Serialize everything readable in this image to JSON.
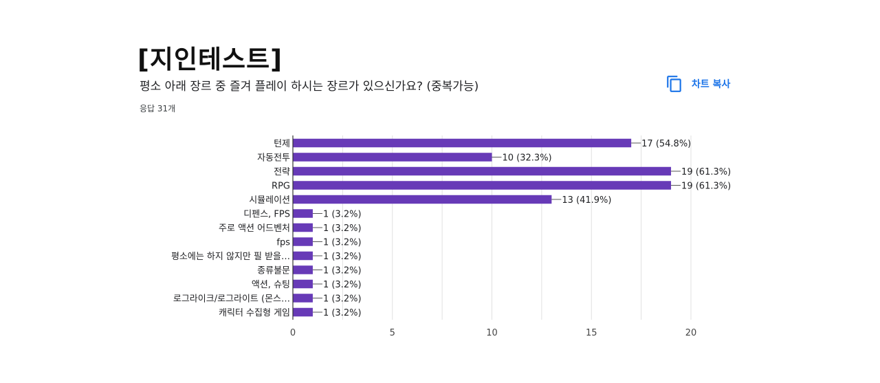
{
  "header": {
    "title": "[지인테스트]",
    "question": "평소 아래 장르 중 즐겨 플레이 하시는 장르가 있으신가요? (중복가능)",
    "response_count": "응답 31개",
    "copy_chart_label": "차트 복사",
    "copy_icon": "copy-icon"
  },
  "colors": {
    "bar": "#673ab7",
    "accent": "#1a73e8",
    "grid": "#e0e0e0",
    "axis": "#333333",
    "text": "#202124"
  },
  "chart_data": {
    "type": "bar",
    "orientation": "horizontal",
    "title": "평소 아래 장르 중 즐겨 플레이 하시는 장르가 있으신가요? (중복가능)",
    "xlabel": "",
    "ylabel": "",
    "xlim": [
      0,
      20
    ],
    "xticks": [
      0,
      5,
      10,
      15,
      20
    ],
    "grid": true,
    "legend": "none",
    "categories": [
      "턴제",
      "자동전투",
      "전략",
      "RPG",
      "시뮬레이션",
      "디펜스, FPS",
      "주로 액션 어드벤처",
      "fps",
      "평소에는 하지 않지만 필 받을…",
      "종류불문",
      "액션, 슈팅",
      "로그라이크/로그라이트 (몬스…",
      "캐릭터 수집형 게임"
    ],
    "values": [
      17,
      10,
      19,
      19,
      13,
      1,
      1,
      1,
      1,
      1,
      1,
      1,
      1
    ],
    "labels": [
      "17 (54.8%)",
      "10 (32.3%)",
      "19 (61.3%)",
      "19 (61.3%)",
      "13 (41.9%)",
      "1 (3.2%)",
      "1 (3.2%)",
      "1 (3.2%)",
      "1 (3.2%)",
      "1 (3.2%)",
      "1 (3.2%)",
      "1 (3.2%)",
      "1 (3.2%)"
    ]
  }
}
